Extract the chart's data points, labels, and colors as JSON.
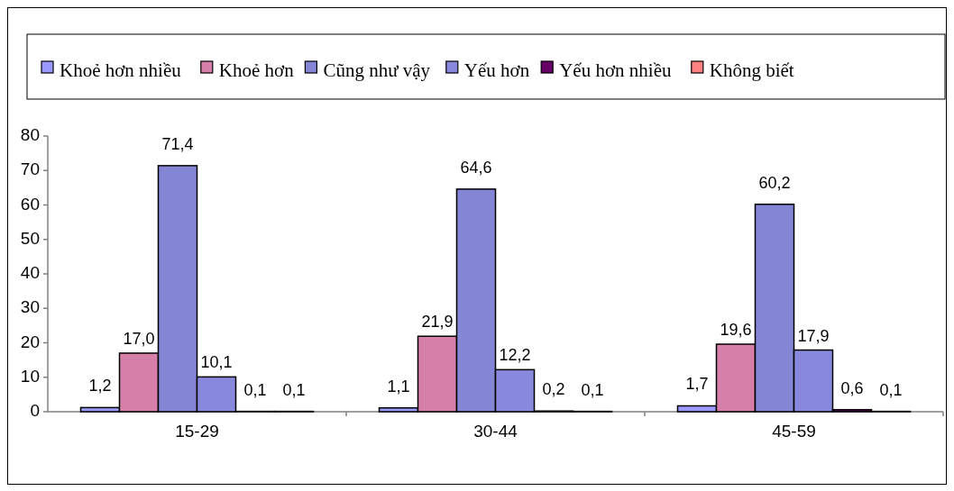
{
  "chart_data": {
    "type": "bar",
    "categories": [
      "15-29",
      "30-44",
      "45-59"
    ],
    "series": [
      {
        "name": "Khoẻ hơn nhiều",
        "color": "#9999ff",
        "values": [
          1.2,
          1.1,
          1.7
        ],
        "value_labels": [
          "1,2",
          "1,1",
          "1,7"
        ]
      },
      {
        "name": "Khoẻ hơn",
        "color": "#d67fa8",
        "values": [
          17.0,
          21.9,
          19.6
        ],
        "value_labels": [
          "17,0",
          "21,9",
          "19,6"
        ]
      },
      {
        "name": "Cũng như vậy",
        "color": "#8585d6",
        "values": [
          71.4,
          64.6,
          60.2
        ],
        "value_labels": [
          "71,4",
          "64,6",
          "60,2"
        ]
      },
      {
        "name": "Yếu hơn",
        "color": "#8888dd",
        "values": [
          10.1,
          12.2,
          17.9
        ],
        "value_labels": [
          "10,1",
          "12,2",
          "17,9"
        ]
      },
      {
        "name": "Yếu hơn nhiều",
        "color": "#660066",
        "values": [
          0.1,
          0.2,
          0.6
        ],
        "value_labels": [
          "0,1",
          "0,2",
          "0,6"
        ]
      },
      {
        "name": "Không biết",
        "color": "#ff8080",
        "values": [
          0.1,
          0.1,
          0.1
        ],
        "value_labels": [
          "0,1",
          "0,1",
          "0,1"
        ]
      }
    ],
    "ylim": [
      0,
      80
    ],
    "yticks": [
      0,
      10,
      20,
      30,
      40,
      50,
      60,
      70,
      80
    ],
    "grid": false,
    "legend": "top"
  }
}
